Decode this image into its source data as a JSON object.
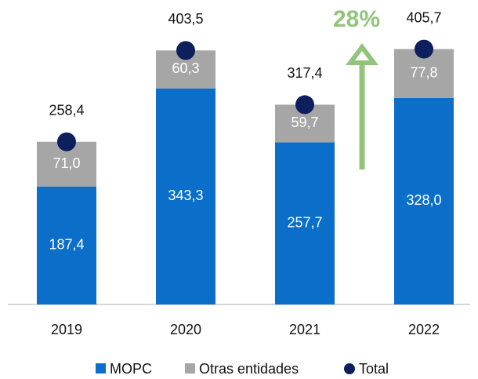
{
  "chart_data": {
    "type": "stacked_bar",
    "categories": [
      "2019",
      "2020",
      "2021",
      "2022"
    ],
    "series": [
      {
        "name": "MOPC",
        "color": "#0b6fca",
        "values": [
          187.4,
          343.3,
          257.7,
          328.0
        ],
        "value_labels": [
          "187,4",
          "343,3",
          "257,7",
          "328,0"
        ]
      },
      {
        "name": "Otras entidades",
        "color": "#a6a6a6",
        "values": [
          71.0,
          60.3,
          59.7,
          77.8
        ],
        "value_labels": [
          "71,0",
          "60,3",
          "59,7",
          "77,8"
        ]
      },
      {
        "name": "Total",
        "color": "#0d1f5c",
        "values": [
          258.4,
          403.5,
          317.4,
          405.7
        ],
        "value_labels": [
          "258,4",
          "403,5",
          "317,4",
          "405,7"
        ]
      }
    ],
    "ylim": [
      0,
      480
    ],
    "annotation": "28%",
    "annotation_color": "#92c47c"
  }
}
